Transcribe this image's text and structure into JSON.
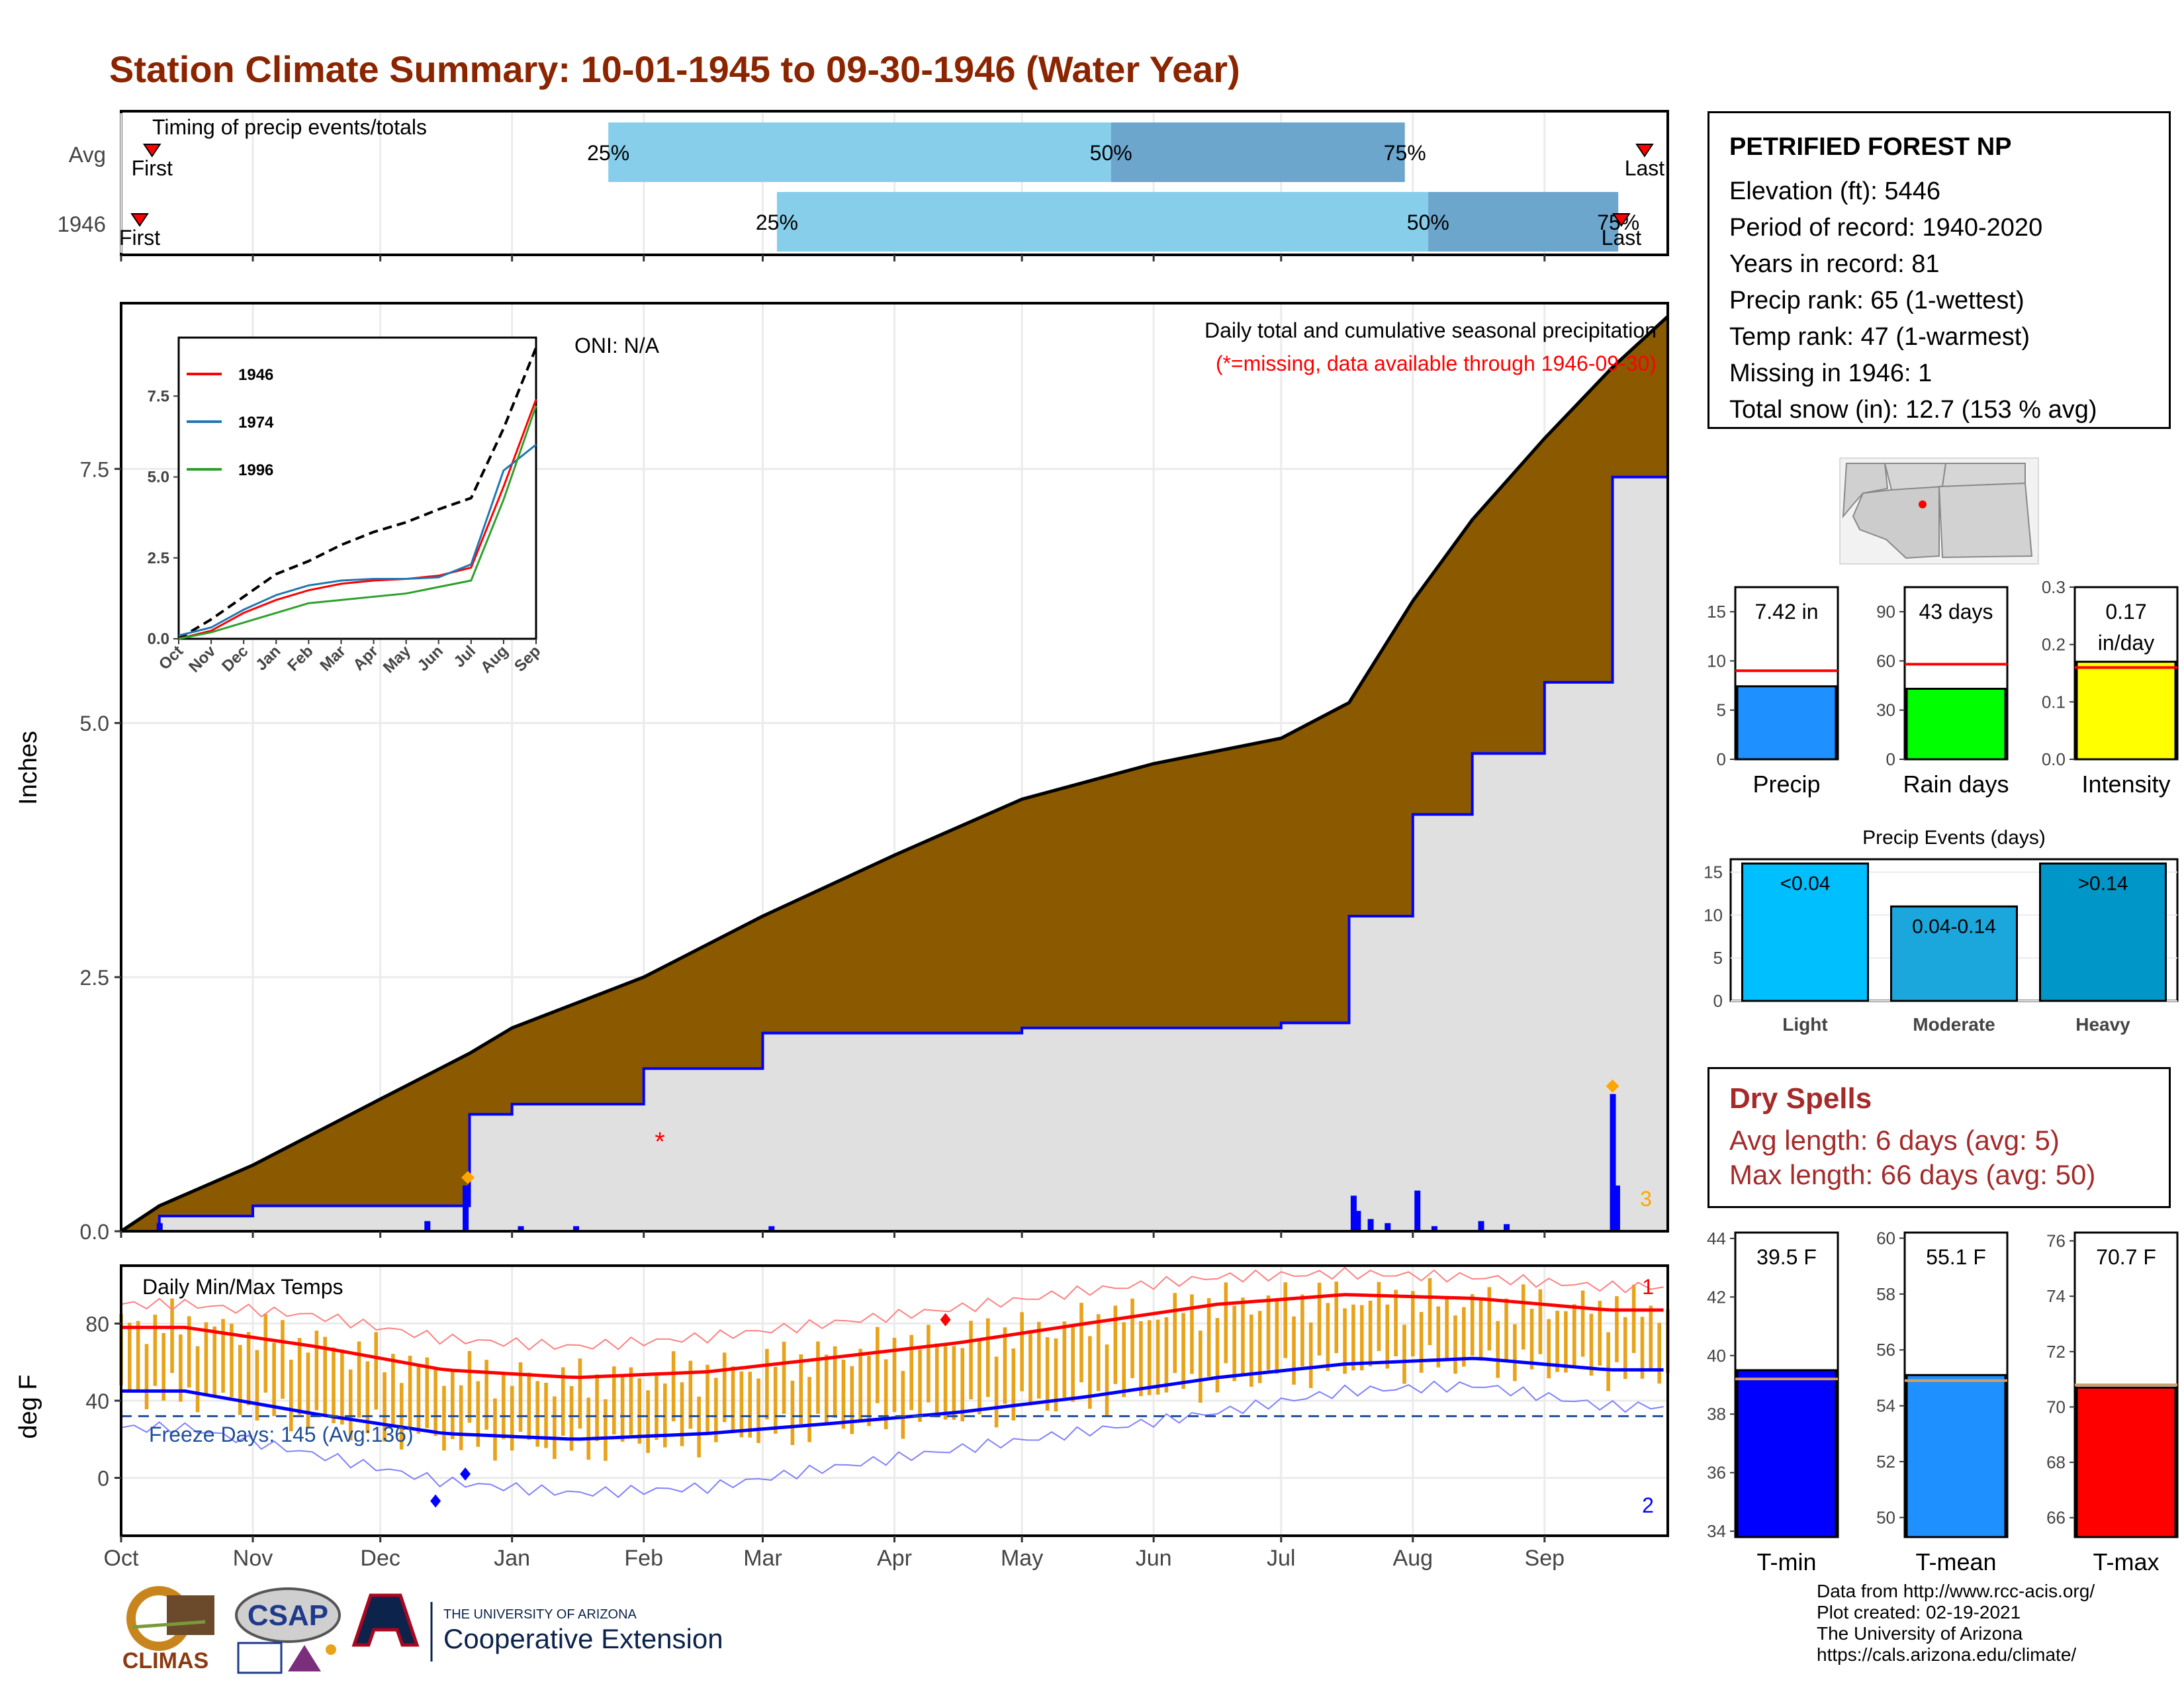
{
  "title": "Station Climate Summary: 10-01-1945 to 09-30-1946 (Water Year)",
  "colors": {
    "title": "#8B2500",
    "light_blue": "#87CEEB",
    "mid_blue": "#6CA6CD",
    "brown": "#8B5A00",
    "panel_gray": "#E0E0E0",
    "season_line": "#0000FF",
    "red": "#FF0000",
    "orange": "#FFA500",
    "temp_bar": "#E8A31A",
    "dry_spells": "#A52A2A"
  },
  "station": {
    "name": "PETRIFIED FOREST NP",
    "lines": [
      "Elevation (ft): 5446",
      "Period of record: 1940-2020",
      "Years in record: 81",
      "Precip rank: 65 (1-wettest)",
      "Temp rank: 47 (1-warmest)",
      "Missing in 1946: 1",
      "Total snow (in): 12.7 (153 % avg)"
    ]
  },
  "timing_panel": {
    "label": "Timing of precip events/totals",
    "rows": [
      {
        "name": "Avg",
        "first": "First",
        "last": "Last",
        "p25": "25%",
        "p50": "50%",
        "p75": "75%",
        "first_frac": 0.02,
        "q25_frac": 0.315,
        "q50_frac": 0.64,
        "q75_frac": 0.83,
        "last_frac": 0.985
      },
      {
        "name": "1946",
        "first": "First",
        "last": "Last",
        "p25": "25%",
        "p50": "50%",
        "p75": "75%",
        "first_frac": 0.012,
        "q25_frac": 0.424,
        "q50_frac": 0.845,
        "q75_frac": 0.968,
        "last_frac": 0.97
      }
    ]
  },
  "precip_panel": {
    "ylabel": "Inches",
    "yticks": [
      "0.0",
      "2.5",
      "5.0",
      "7.5"
    ],
    "oni": "ONI: N/A",
    "header": "Daily total and cumulative seasonal precipitation",
    "subheader": "(*=missing, data available through 1946-09-30)",
    "missing_marker": "*",
    "count_label": "3"
  },
  "inset": {
    "yticks": [
      "0.0",
      "2.5",
      "5.0",
      "7.5"
    ],
    "xticks": [
      "Oct",
      "Nov",
      "Dec",
      "Jan",
      "Feb",
      "Mar",
      "Apr",
      "May",
      "Jun",
      "Jul",
      "Aug",
      "Sep"
    ],
    "legend": [
      "1946",
      "1974",
      "1996"
    ]
  },
  "temp_panel": {
    "ylabel": "deg F",
    "yticks": [
      "0",
      "40",
      "80"
    ],
    "label": "Daily Min/Max Temps",
    "freeze": "Freeze Days: 145 (Avg:136)",
    "record_high_count": "1",
    "record_low_count": "2"
  },
  "months": [
    "Oct",
    "Nov",
    "Dec",
    "Jan",
    "Feb",
    "Mar",
    "Apr",
    "May",
    "Jun",
    "Jul",
    "Aug",
    "Sep"
  ],
  "summary_bars": {
    "precip": {
      "label": "Precip",
      "value_label": "7.42 in",
      "yticks": [
        "0",
        "5",
        "10",
        "15"
      ]
    },
    "rain_days": {
      "label": "Rain days",
      "value_label": "43 days",
      "yticks": [
        "0",
        "30",
        "60",
        "90"
      ]
    },
    "intensity": {
      "label": "Intensity",
      "value_label": "0.17",
      "value_unit": "in/day",
      "yticks": [
        "0.0",
        "0.1",
        "0.2",
        "0.3"
      ]
    }
  },
  "events_panel": {
    "title": "Precip Events (days)",
    "yticks": [
      "0",
      "5",
      "10",
      "15"
    ],
    "categories": [
      "Light",
      "Moderate",
      "Heavy"
    ],
    "bar_labels": [
      "<0.04",
      "0.04-0.14",
      ">0.14"
    ]
  },
  "dry_spells": {
    "title": "Dry Spells",
    "avg": "Avg length: 6 days (avg: 5)",
    "max": "Max length: 66 days (avg: 50)"
  },
  "temp_bars": {
    "tmin": {
      "label": "T-min",
      "value_label": "39.5 F",
      "yticks": [
        "34",
        "36",
        "38",
        "40",
        "42",
        "44"
      ]
    },
    "tmean": {
      "label": "T-mean",
      "value_label": "55.1 F",
      "yticks": [
        "50",
        "52",
        "54",
        "56",
        "58",
        "60"
      ]
    },
    "tmax": {
      "label": "T-max",
      "value_label": "70.7 F",
      "yticks": [
        "66",
        "68",
        "70",
        "72",
        "74",
        "76"
      ]
    }
  },
  "logos": {
    "climas": "CLIMAS",
    "csap": "CSAP",
    "ua_small": "THE UNIVERSITY OF ARIZONA",
    "ua_big": "Cooperative Extension"
  },
  "credits": [
    "Data from http://www.rcc-acis.org/",
    "Plot created: 02-19-2021",
    "The University of Arizona",
    "https://cals.arizona.edu/climate/"
  ],
  "chart_data": [
    {
      "type": "bar",
      "title": "Timing of precip events/totals",
      "categories": [
        "Avg",
        "1946"
      ],
      "series": [
        {
          "name": "25%",
          "values": [
            0.315,
            0.424
          ]
        },
        {
          "name": "50%",
          "values": [
            0.64,
            0.845
          ]
        },
        {
          "name": "75%",
          "values": [
            0.83,
            0.968
          ]
        }
      ]
    },
    {
      "type": "area",
      "title": "Daily total and cumulative seasonal precipitation",
      "ylabel": "Inches",
      "ylim": [
        0,
        9.0
      ],
      "x": [
        "Oct 1",
        "Oct 10",
        "Nov 1",
        "Dec 1",
        "Dec 15",
        "Dec 22",
        "Jan 1",
        "Feb 1",
        "Mar 1",
        "Apr 1",
        "May 1",
        "Jun 1",
        "Jul 1",
        "Jul 17",
        "Aug 1",
        "Aug 15",
        "Sep 1",
        "Sep 17",
        "Sep 30"
      ],
      "series": [
        {
          "name": "avg",
          "values": [
            0.0,
            0.25,
            0.65,
            1.3,
            1.6,
            1.75,
            2.0,
            2.5,
            3.1,
            3.7,
            4.25,
            4.6,
            4.85,
            5.2,
            6.2,
            7.0,
            7.8,
            8.5,
            9.0
          ]
        },
        {
          "name": "1946",
          "values": [
            0.0,
            0.15,
            0.25,
            0.25,
            0.25,
            1.15,
            1.25,
            1.6,
            1.95,
            1.95,
            2.0,
            2.0,
            2.05,
            3.1,
            4.1,
            4.7,
            5.4,
            7.42,
            7.42
          ]
        }
      ],
      "daily_bars": [
        {
          "x": "Oct 10",
          "value": 0.08
        },
        {
          "x": "Dec 12",
          "value": 0.1
        },
        {
          "x": "Dec 21",
          "value": 0.45
        },
        {
          "x": "Jan 3",
          "value": 0.05
        },
        {
          "x": "Jan 16",
          "value": 0.05
        },
        {
          "x": "Mar 3",
          "value": 0.05
        },
        {
          "x": "Jul 18",
          "value": 0.35
        },
        {
          "x": "Jul 19",
          "value": 0.2
        },
        {
          "x": "Jul 22",
          "value": 0.12
        },
        {
          "x": "Jul 26",
          "value": 0.08
        },
        {
          "x": "Aug 2",
          "value": 0.4
        },
        {
          "x": "Aug 6",
          "value": 0.05
        },
        {
          "x": "Aug 17",
          "value": 0.1
        },
        {
          "x": "Aug 23",
          "value": 0.07
        },
        {
          "x": "Sep 17",
          "value": 1.35
        },
        {
          "x": "Sep 18",
          "value": 0.45
        }
      ]
    },
    {
      "type": "line",
      "categories": [
        "Oct",
        "Nov",
        "Dec",
        "Jan",
        "Feb",
        "Mar",
        "Apr",
        "May",
        "Jun",
        "Jul",
        "Aug",
        "Sep"
      ],
      "ylim": [
        0,
        9.0
      ],
      "series": [
        {
          "name": "avg",
          "values": [
            0.0,
            0.6,
            1.3,
            2.0,
            2.4,
            2.9,
            3.3,
            3.6,
            4.0,
            4.35,
            6.5,
            9.0
          ]
        },
        {
          "name": "1946",
          "values": [
            0.0,
            0.25,
            0.8,
            1.2,
            1.5,
            1.7,
            1.8,
            1.85,
            1.95,
            2.2,
            4.7,
            7.4
          ]
        },
        {
          "name": "1974",
          "values": [
            0.1,
            0.35,
            0.9,
            1.35,
            1.65,
            1.8,
            1.85,
            1.85,
            1.9,
            2.3,
            5.2,
            6.0
          ]
        },
        {
          "name": "1996",
          "values": [
            0.0,
            0.2,
            0.5,
            0.8,
            1.1,
            1.2,
            1.3,
            1.4,
            1.6,
            1.8,
            4.3,
            7.2
          ]
        }
      ]
    },
    {
      "type": "line",
      "title": "Daily Min/Max Temps",
      "ylabel": "deg F",
      "ylim": [
        -30,
        110
      ],
      "categories": [
        "Oct",
        "Nov",
        "Dec",
        "Jan",
        "Feb",
        "Mar",
        "Apr",
        "May",
        "Jun",
        "Jul",
        "Aug",
        "Sep"
      ],
      "series": [
        {
          "name": "avg max",
          "values": [
            78,
            68,
            56,
            52,
            55,
            62,
            70,
            80,
            90,
            95,
            93,
            87
          ]
        },
        {
          "name": "avg min",
          "values": [
            45,
            33,
            23,
            20,
            23,
            28,
            34,
            42,
            52,
            59,
            62,
            56
          ]
        },
        {
          "name": "record max",
          "values": [
            90,
            84,
            72,
            68,
            73,
            80,
            88,
            97,
            104,
            106,
            104,
            99
          ]
        },
        {
          "name": "record min",
          "values": [
            26,
            12,
            -2,
            -8,
            -5,
            5,
            15,
            24,
            34,
            45,
            48,
            37
          ]
        },
        {
          "name": "1946 max",
          "values": [
            80,
            70,
            55,
            50,
            55,
            63,
            72,
            80,
            90,
            93,
            91,
            88
          ]
        },
        {
          "name": "1946 min",
          "values": [
            44,
            30,
            20,
            16,
            21,
            27,
            33,
            41,
            50,
            58,
            60,
            55
          ]
        }
      ]
    },
    {
      "type": "bar",
      "categories": [
        "Precip"
      ],
      "values": [
        7.42
      ],
      "ylim": [
        0,
        17.5
      ],
      "series": [
        {
          "name": "avg",
          "values": [
            9.0
          ]
        }
      ]
    },
    {
      "type": "bar",
      "categories": [
        "Rain days"
      ],
      "values": [
        43
      ],
      "ylim": [
        0,
        105
      ],
      "series": [
        {
          "name": "avg",
          "values": [
            58
          ]
        }
      ]
    },
    {
      "type": "bar",
      "categories": [
        "Intensity"
      ],
      "values": [
        0.17
      ],
      "ylim": [
        0,
        0.3
      ],
      "series": [
        {
          "name": "avg",
          "values": [
            0.16
          ]
        }
      ]
    },
    {
      "type": "bar",
      "title": "Precip Events (days)",
      "categories": [
        "Light",
        "Moderate",
        "Heavy"
      ],
      "values": [
        16,
        11,
        16
      ],
      "ylim": [
        0,
        16.5
      ]
    },
    {
      "type": "bar",
      "categories": [
        "T-min"
      ],
      "values": [
        39.5
      ],
      "ylim": [
        33.8,
        44.2
      ],
      "series": [
        {
          "name": "avg",
          "values": [
            39.2
          ]
        }
      ]
    },
    {
      "type": "bar",
      "categories": [
        "T-mean"
      ],
      "values": [
        55.1
      ],
      "ylim": [
        49.3,
        60.2
      ],
      "series": [
        {
          "name": "avg",
          "values": [
            54.9
          ]
        }
      ]
    },
    {
      "type": "bar",
      "categories": [
        "T-max"
      ],
      "values": [
        70.7
      ],
      "ylim": [
        65.3,
        76.3
      ],
      "series": [
        {
          "name": "avg",
          "values": [
            70.8
          ]
        }
      ]
    }
  ]
}
